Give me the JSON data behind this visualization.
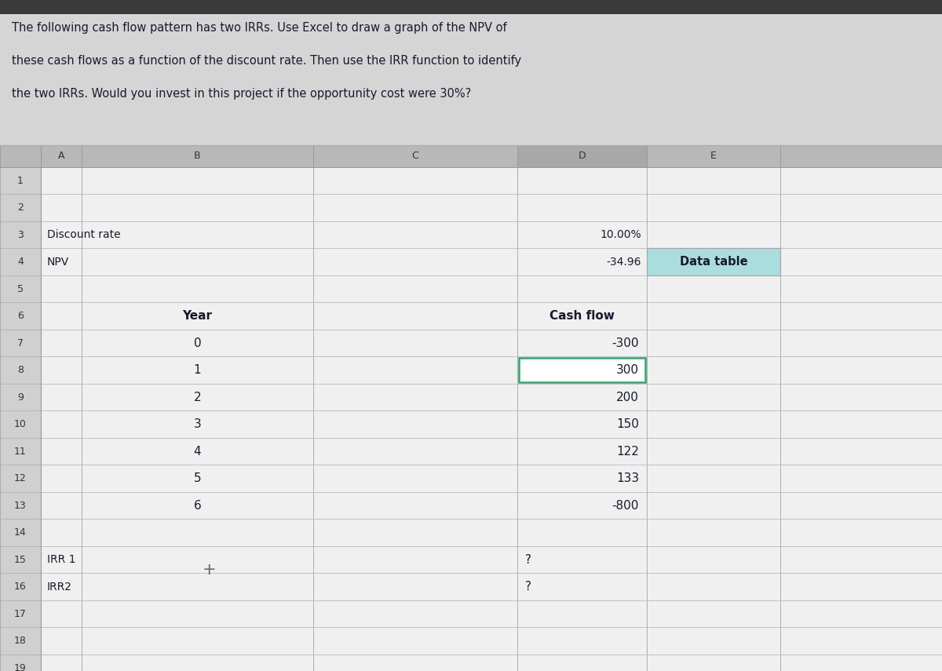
{
  "title_text_line1": "The following cash flow pattern has two IRRs. Use Excel to draw a graph of the NPV of",
  "title_text_line2": "these cash flows as a function of the discount rate. Then use the IRR function to identify",
  "title_text_line3": "the two IRRs. Would you invest in this project if the opportunity cost were 30%?",
  "bg_color": "#c8c8c8",
  "spreadsheet_bg": "#e8e8e8",
  "cell_bg_light": "#f0f0f0",
  "cell_bg_alt": "#e4e4e4",
  "title_area_bg": "#d8d8d8",
  "row_num_bg": "#c0c0c0",
  "col_header_bg": "#b8b8b8",
  "grid_color": "#aaaaaa",
  "text_color": "#1a1a2e",
  "row_num_text_color": "#333333",
  "highlight_cell_bg": "#aadddd",
  "selected_cell_border": "#2ea86e",
  "discount_rate_label": "Discount rate",
  "discount_rate_value": "10.00%",
  "npv_label": "NPV",
  "npv_value": "-34.96",
  "data_table_label": "Data table",
  "year_label": "Year",
  "cashflow_label": "Cash flow",
  "years": [
    0,
    1,
    2,
    3,
    4,
    5,
    6
  ],
  "cashflows": [
    -300,
    300,
    200,
    150,
    122,
    133,
    -800
  ],
  "irr1_label": "IRR 1",
  "irr2_label": "IRR2",
  "irr_value": "?",
  "col_names": [
    "",
    "A",
    "B",
    "C",
    "D",
    "E"
  ],
  "num_rows": 19
}
